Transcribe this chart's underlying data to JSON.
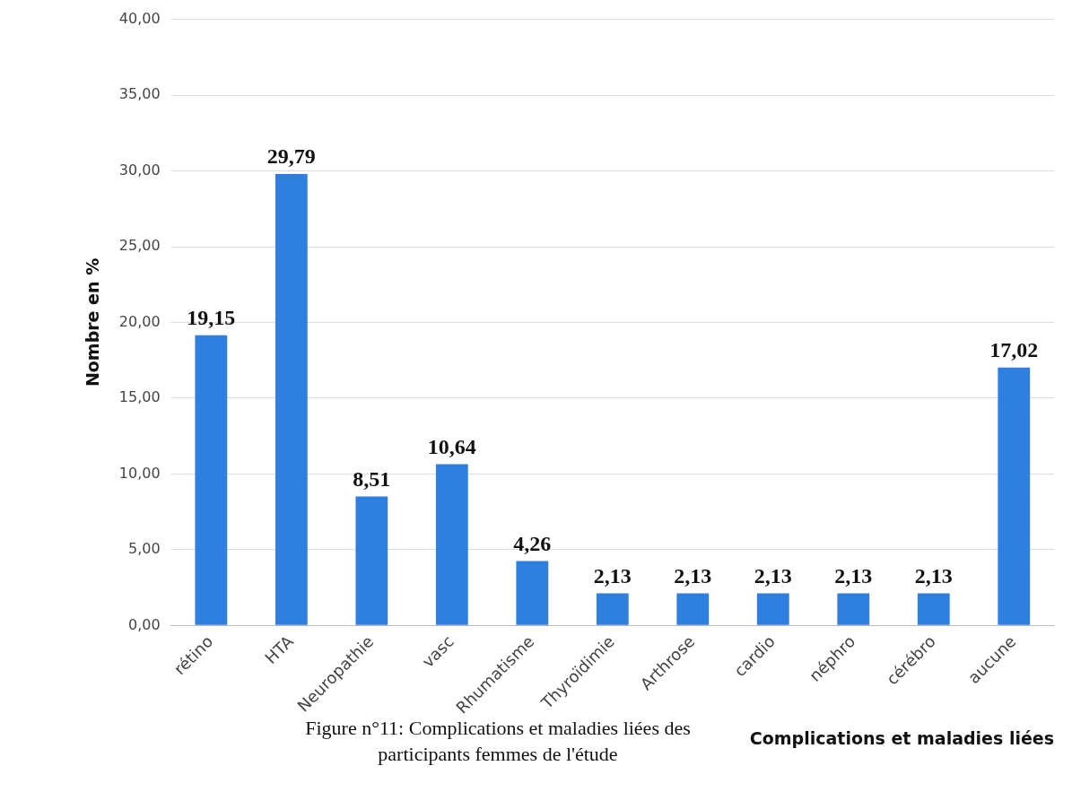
{
  "chart_data": {
    "type": "bar",
    "ylabel": "Nombre en %",
    "xlabel": "Complications et maladies liées",
    "categories": [
      "rétino",
      "HTA",
      "Neuropathie",
      "vasc",
      "Rhumatisme",
      "Thyroïdimie",
      "Arthrose",
      "cardio",
      "néphro",
      "cérébro",
      "aucune"
    ],
    "values": [
      19.15,
      29.79,
      8.51,
      10.64,
      4.26,
      2.13,
      2.13,
      2.13,
      2.13,
      2.13,
      17.02
    ],
    "value_labels": [
      "19,15",
      "29,79",
      "8,51",
      "10,64",
      "4,26",
      "2,13",
      "2,13",
      "2,13",
      "2,13",
      "2,13",
      "17,02"
    ],
    "color": "#2e7fe0",
    "ylim": [
      0,
      40
    ],
    "yticks": [
      {
        "value": 0,
        "label": "0,00"
      },
      {
        "value": 5,
        "label": "5,00"
      },
      {
        "value": 10,
        "label": "10,00"
      },
      {
        "value": 15,
        "label": "15,00"
      },
      {
        "value": 20,
        "label": "20,00"
      },
      {
        "value": 25,
        "label": "25,00"
      },
      {
        "value": 30,
        "label": "30,00"
      },
      {
        "value": 35,
        "label": "35,00"
      },
      {
        "value": 40,
        "label": "40,00"
      }
    ],
    "grid": "y",
    "annotations": [
      "Figure n°11: Complications et maladies liées des participants femmes de l'étude"
    ]
  }
}
